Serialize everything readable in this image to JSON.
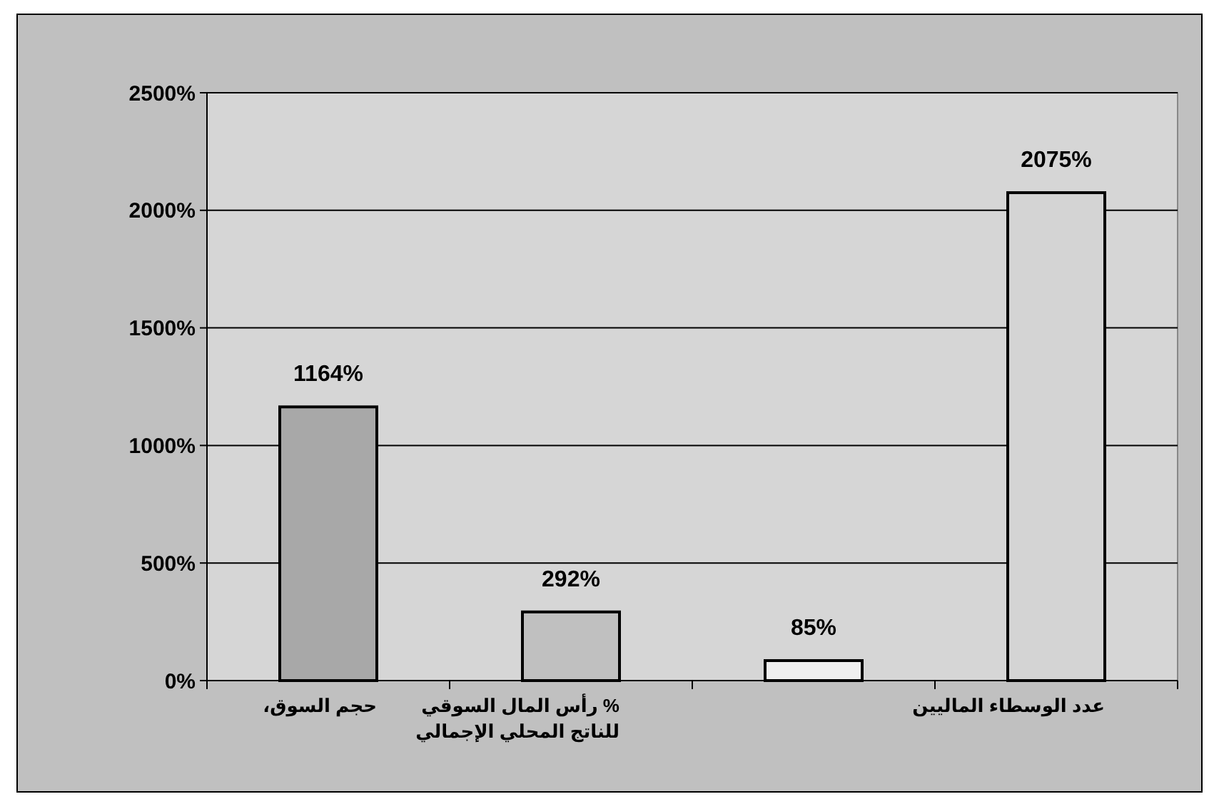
{
  "chart_data": {
    "type": "bar",
    "categories": [
      "حجم السوق،",
      "% رأس المال السوقي للناتج المحلي الإجمالي",
      null,
      "عدد الوسطاء الماليين"
    ],
    "values": [
      1164,
      292,
      85,
      2075
    ],
    "colors": [
      "#a8a8a8",
      "#c0c0c0",
      "#f0f0f0",
      "#d4d4d4"
    ],
    "value_labels": [
      "1164%",
      "292%",
      "85%",
      "2075%"
    ],
    "ylim": [
      0,
      2500
    ],
    "yticks": [
      {
        "value": 0,
        "label": "0%"
      },
      {
        "value": 500,
        "label": "500%"
      },
      {
        "value": 1000,
        "label": "1000%"
      },
      {
        "value": 1500,
        "label": "1500%"
      },
      {
        "value": 2000,
        "label": "2000%"
      },
      {
        "value": 2500,
        "label": "2500%"
      }
    ],
    "grid": "y"
  }
}
